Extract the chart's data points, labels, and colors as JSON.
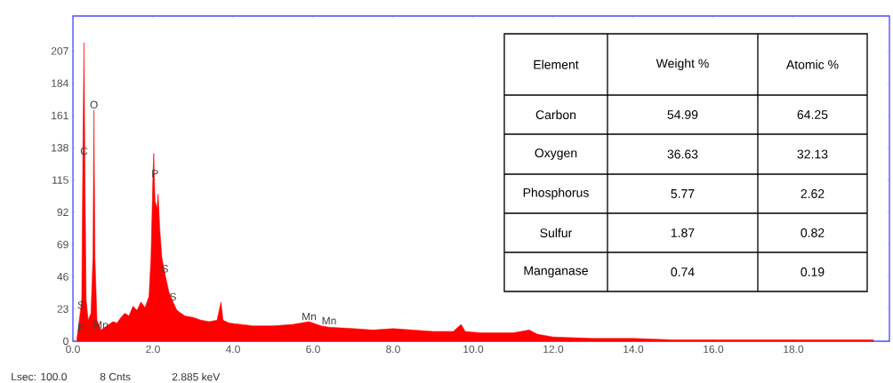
{
  "chart_data": [
    {
      "type": "area",
      "color": "#ff0000",
      "x": [
        0.1,
        0.18,
        0.22,
        0.25,
        0.277,
        0.3,
        0.33,
        0.38,
        0.45,
        0.5,
        0.525,
        0.55,
        0.6,
        0.7,
        0.8,
        0.9,
        1.0,
        1.1,
        1.2,
        1.3,
        1.4,
        1.5,
        1.6,
        1.7,
        1.8,
        1.9,
        1.95,
        2.0,
        2.02,
        2.05,
        2.1,
        2.13,
        2.17,
        2.22,
        2.3,
        2.4,
        2.5,
        2.6,
        2.7,
        2.8,
        3.0,
        3.2,
        3.4,
        3.6,
        3.7,
        3.75,
        3.9,
        4.2,
        4.5,
        5.0,
        5.5,
        5.9,
        6.2,
        6.4,
        7.0,
        7.5,
        8.0,
        8.5,
        9.0,
        9.5,
        9.7,
        9.8,
        10.2,
        10.6,
        11.0,
        11.4,
        11.6,
        12.0,
        13.0,
        14.0,
        15.0,
        16.0,
        17.0,
        18.0,
        19.0,
        20.0
      ],
      "values": [
        2,
        20,
        30,
        140,
        213,
        120,
        30,
        15,
        20,
        60,
        165,
        60,
        15,
        8,
        10,
        12,
        14,
        13,
        17,
        20,
        18,
        25,
        22,
        28,
        24,
        32,
        60,
        120,
        134,
        100,
        95,
        105,
        80,
        60,
        48,
        35,
        28,
        22,
        20,
        18,
        17,
        15,
        14,
        15,
        28,
        15,
        13,
        12,
        11,
        11,
        12,
        14,
        11,
        10,
        9,
        8,
        9,
        8,
        7,
        7,
        12,
        7,
        6,
        6,
        6,
        8,
        5,
        3,
        2,
        2,
        1,
        1,
        1,
        1,
        1,
        1
      ],
      "xlim": [
        0,
        20.4
      ],
      "ylim": [
        0,
        232
      ],
      "xticks": [
        {
          "value": 0,
          "label": "0.0"
        },
        {
          "value": 2,
          "label": "2.0"
        },
        {
          "value": 4,
          "label": "4.0"
        },
        {
          "value": 6,
          "label": "6.0"
        },
        {
          "value": 8,
          "label": "8.0"
        },
        {
          "value": 10,
          "label": "10.0"
        },
        {
          "value": 12,
          "label": "12.0"
        },
        {
          "value": 14,
          "label": "14.0"
        },
        {
          "value": 16,
          "label": "16.0"
        },
        {
          "value": 18,
          "label": "18.0"
        }
      ],
      "yticks": [
        0,
        23,
        46,
        69,
        92,
        115,
        138,
        161,
        184,
        207
      ],
      "annotations": [
        {
          "text": "C",
          "x": 0.28,
          "y": 132
        },
        {
          "text": "O",
          "x": 0.525,
          "y": 165
        },
        {
          "text": "P",
          "x": 2.05,
          "y": 116
        },
        {
          "text": "S",
          "x": 2.3,
          "y": 48
        },
        {
          "text": "S",
          "x": 2.5,
          "y": 28
        },
        {
          "text": "S",
          "x": 0.2,
          "y": 22
        },
        {
          "text": "P",
          "x": 0.2,
          "y": 6
        },
        {
          "text": "Mn",
          "x": 0.7,
          "y": 8
        },
        {
          "text": "Mn",
          "x": 5.9,
          "y": 14
        },
        {
          "text": "Mn",
          "x": 6.4,
          "y": 11
        },
        "Lsec: 100.0",
        "8 Cnts",
        "2.885 keV"
      ]
    },
    {
      "type": "other",
      "xlabel": "Element",
      "categories": [
        "Carbon",
        "Oxygen",
        "Phosphorus",
        "Sulfur",
        "Manganase"
      ],
      "series": [
        {
          "name": "Weight %",
          "values": [
            54.99,
            36.63,
            5.77,
            1.87,
            0.74
          ]
        },
        {
          "name": "Atomic %",
          "values": [
            64.25,
            32.13,
            2.62,
            0.82,
            0.19
          ]
        }
      ],
      "data_labels": true
    }
  ]
}
